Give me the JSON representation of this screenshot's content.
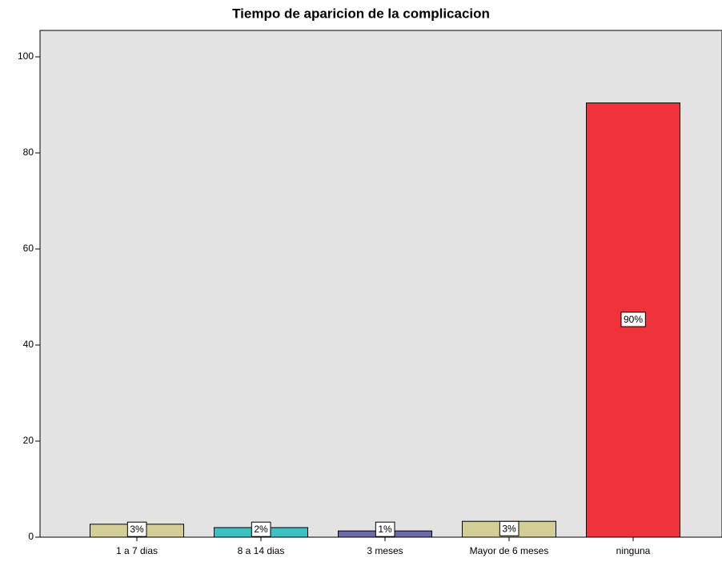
{
  "chart_data": {
    "type": "bar",
    "title": "Tiempo de aparicion de la complicacion",
    "categories": [
      "1 a 7 dias",
      "8 a 14 dias",
      "3 meses",
      "Mayor de 6 meses",
      "ninguna"
    ],
    "values": [
      2.7,
      2.0,
      1.3,
      3.3,
      90.4
    ],
    "value_labels": [
      "3%",
      "2%",
      "1%",
      "3%",
      "90%"
    ],
    "colors": [
      "#d3cd96",
      "#3ec0c2",
      "#6a6aa6",
      "#d3cd96",
      "#f0323a"
    ],
    "ylim": [
      0,
      105.5
    ],
    "yticks": [
      0,
      20,
      40,
      60,
      80,
      100
    ],
    "grid": false
  }
}
